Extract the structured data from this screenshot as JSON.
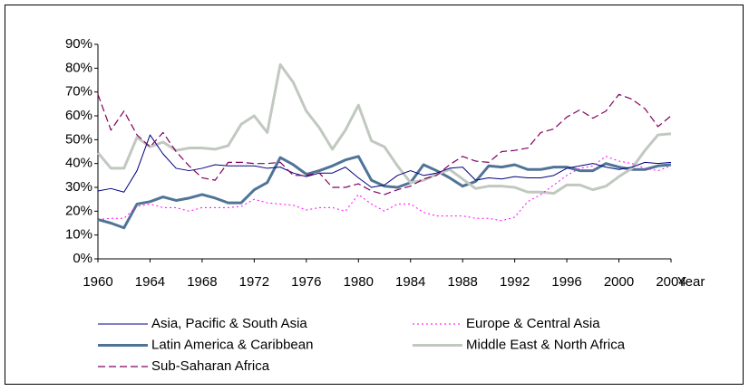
{
  "chart_data": {
    "type": "line",
    "xlabel": "Year",
    "x": [
      1960,
      1961,
      1962,
      1963,
      1964,
      1965,
      1966,
      1967,
      1968,
      1969,
      1970,
      1971,
      1972,
      1973,
      1974,
      1975,
      1976,
      1977,
      1978,
      1979,
      1980,
      1981,
      1982,
      1983,
      1984,
      1985,
      1986,
      1987,
      1988,
      1989,
      1990,
      1991,
      1992,
      1993,
      1994,
      1995,
      1996,
      1997,
      1998,
      1999,
      2000,
      2001,
      2002,
      2003,
      2004
    ],
    "xlim": [
      1960,
      2004
    ],
    "xticks": [
      1960,
      1964,
      1968,
      1972,
      1976,
      1980,
      1984,
      1988,
      1992,
      1996,
      2000,
      2004
    ],
    "ylim": [
      0,
      90
    ],
    "yticks": [
      {
        "value": 0,
        "label": "0%"
      },
      {
        "value": 10,
        "label": "10%"
      },
      {
        "value": 20,
        "label": "20%"
      },
      {
        "value": 30,
        "label": "30%"
      },
      {
        "value": 40,
        "label": "40%"
      },
      {
        "value": 50,
        "label": "50%"
      },
      {
        "value": 60,
        "label": "60%"
      },
      {
        "value": 70,
        "label": "70%"
      },
      {
        "value": 80,
        "label": "80%"
      },
      {
        "value": 90,
        "label": "90%"
      }
    ],
    "grid": false,
    "legend": "bottom",
    "series": [
      {
        "name": "Asia, Pacific & South Asia",
        "color": "#000080",
        "line_width": 1,
        "line_style": "solid",
        "values": [
          28.5,
          29.5,
          28,
          37,
          52,
          44,
          38,
          37,
          38,
          39.5,
          39,
          39,
          39,
          38,
          38.5,
          36,
          34.5,
          36,
          36,
          38.5,
          34,
          30,
          31,
          35,
          37,
          35,
          36,
          38,
          38.5,
          33,
          34,
          33.5,
          34.5,
          34,
          34,
          35,
          38,
          39,
          40,
          38.5,
          37.5,
          38.5,
          40.5,
          40,
          40.5
        ]
      },
      {
        "name": "Europe & Central Asia",
        "color": "#ff00ff",
        "line_width": 1,
        "line_style": "dotted",
        "values": [
          16.5,
          17,
          17,
          22,
          23,
          21.5,
          21.5,
          20,
          21.5,
          21.5,
          21.5,
          22,
          25,
          23.5,
          23,
          22.5,
          20.5,
          21.5,
          21.5,
          20,
          27,
          23,
          20,
          23,
          23,
          19.5,
          18,
          18,
          18,
          17,
          17,
          16,
          17.5,
          24,
          27,
          31,
          35,
          38,
          39,
          43,
          41,
          40,
          38,
          37,
          39
        ]
      },
      {
        "name": "Latin America & Caribbean",
        "color": "#4f7496",
        "line_width": 3,
        "line_style": "solid",
        "values": [
          16.5,
          15,
          13,
          23,
          24,
          26,
          24.5,
          25.5,
          27,
          25.5,
          23.5,
          23.5,
          29,
          32,
          42.5,
          39.5,
          35.5,
          37,
          39,
          41.5,
          43,
          33,
          30.5,
          30,
          32,
          39.5,
          37,
          34,
          30.5,
          32.5,
          39,
          38.5,
          39.5,
          37.5,
          37.5,
          38.5,
          38.5,
          37,
          37,
          40,
          38.5,
          37.5,
          37.5,
          39,
          39.5
        ]
      },
      {
        "name": "Middle East & North Africa",
        "color": "#c0c8c0",
        "line_width": 3,
        "line_style": "solid",
        "values": [
          44.5,
          38,
          38,
          51,
          47,
          49,
          45.5,
          46.5,
          46.5,
          46,
          47.5,
          56.5,
          60,
          53,
          81.5,
          74,
          62,
          55,
          46,
          54,
          64.5,
          49.5,
          47,
          39,
          32,
          33,
          35.5,
          37.5,
          33.5,
          29.5,
          30.5,
          30.5,
          30,
          28,
          28,
          27.5,
          31,
          31,
          29,
          30.5,
          34.5,
          38,
          45.5,
          52,
          52.5
        ]
      },
      {
        "name": "Sub-Saharan Africa",
        "color": "#800060",
        "line_width": 1.2,
        "line_style": "dashed",
        "values": [
          69,
          54,
          62,
          52,
          47,
          53,
          45,
          39,
          34,
          33,
          40.5,
          40.5,
          40,
          40,
          40.5,
          35,
          35,
          36,
          30,
          30,
          31.5,
          28.5,
          27,
          29,
          30.5,
          33.5,
          35,
          39.5,
          43,
          41,
          40.5,
          45,
          45.5,
          46.5,
          53,
          54.5,
          59.5,
          62.5,
          59,
          62,
          69,
          67,
          63,
          55.5,
          60
        ]
      }
    ]
  }
}
